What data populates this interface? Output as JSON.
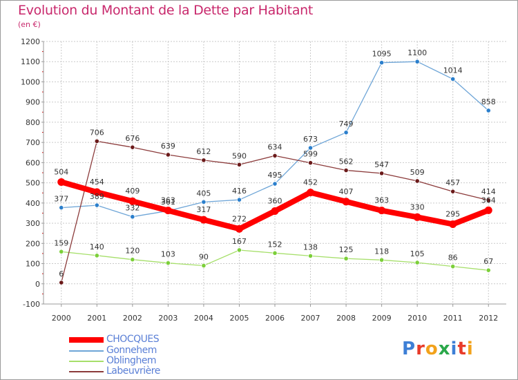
{
  "title": "Evolution du Montant de la Dette par Habitant",
  "unit": "(en €)",
  "brand": "Proxiti",
  "chart_data": {
    "type": "line",
    "x": [
      "2000",
      "2001",
      "2002",
      "2003",
      "2004",
      "2005",
      "2006",
      "2007",
      "2008",
      "2009",
      "2010",
      "2011",
      "2012"
    ],
    "ylim": [
      -100,
      1200
    ],
    "yticks": [
      -100,
      0,
      100,
      200,
      300,
      400,
      500,
      600,
      700,
      800,
      900,
      1000,
      1100,
      1200
    ],
    "grid": true,
    "legend_position": "bottom-left",
    "series": [
      {
        "name": "CHOCQUES",
        "color": "#ff0000",
        "point_color": "#ff0000",
        "values": [
          504,
          454,
          409,
          363,
          317,
          272,
          360,
          452,
          407,
          363,
          330,
          295,
          364
        ]
      },
      {
        "name": "Gonnehem",
        "color": "#6ea5d7",
        "point_color": "#2b7fcc",
        "values": [
          377,
          389,
          332,
          361,
          405,
          416,
          495,
          673,
          749,
          1095,
          1100,
          1014,
          858
        ]
      },
      {
        "name": "Oblinghem",
        "color": "#a6df6a",
        "point_color": "#7ccf3a",
        "values": [
          159,
          140,
          120,
          103,
          90,
          167,
          152,
          138,
          125,
          118,
          105,
          86,
          67
        ]
      },
      {
        "name": "Labeuvrière",
        "color": "#8b3a3a",
        "point_color": "#6b1a1a",
        "values": [
          6,
          706,
          676,
          639,
          612,
          590,
          634,
          599,
          562,
          547,
          509,
          457,
          414
        ]
      }
    ]
  }
}
